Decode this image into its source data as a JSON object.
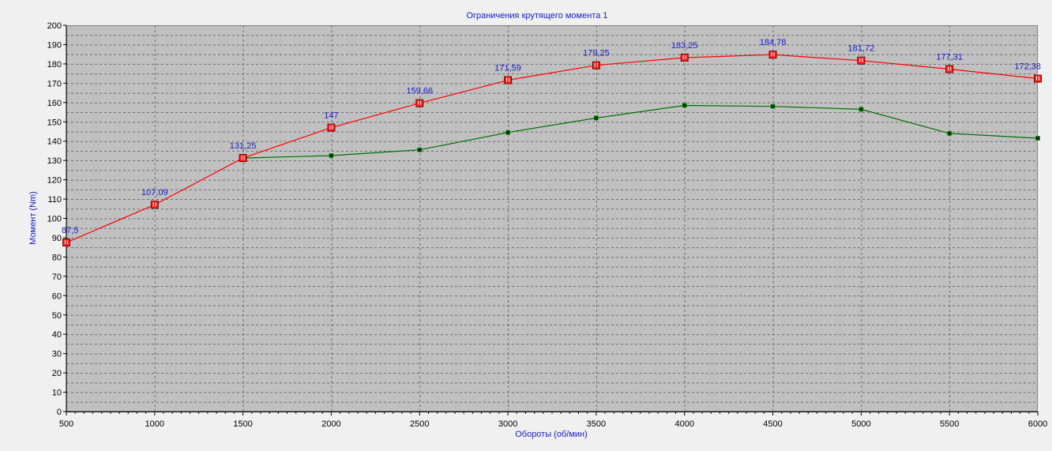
{
  "colors": {
    "page_background": "#f0f0f0",
    "plot_background": "#c0c0c0",
    "grid": "#6e6e6e",
    "text_accent": "#1a1acc",
    "series_red": "#ff0000",
    "series_green": "#007000"
  },
  "chart_data": {
    "type": "line",
    "title": "Ограничения крутящего момента 1",
    "xlabel": "Обороты (об/мин)",
    "ylabel": "Момент (Nm)",
    "xlim": [
      500,
      6000
    ],
    "ylim": [
      0,
      200
    ],
    "x_ticks": [
      500,
      1000,
      1500,
      2000,
      2500,
      3000,
      3500,
      4000,
      4500,
      5000,
      5500,
      6000
    ],
    "y_ticks": [
      0,
      10,
      20,
      30,
      40,
      50,
      60,
      70,
      80,
      90,
      100,
      110,
      120,
      130,
      140,
      150,
      160,
      170,
      180,
      190,
      200
    ],
    "grid": true,
    "legend": "none",
    "x": [
      500,
      1000,
      1500,
      2000,
      2500,
      3000,
      3500,
      4000,
      4500,
      5000,
      5500,
      6000
    ],
    "series": [
      {
        "values": [
          87.5,
          107.09,
          131.25,
          147,
          159.66,
          171.59,
          179.25,
          183.25,
          184.78,
          181.72,
          177.31,
          172.38
        ],
        "data_labels": [
          "87,5",
          "107,09",
          "131,25",
          "147",
          "159,66",
          "171,59",
          "179,25",
          "183,25",
          "184,78",
          "181,72",
          "177,31",
          "172,38"
        ],
        "color": "#ff0000",
        "marker": "red-square-handle"
      },
      {
        "x": [
          1500,
          2000,
          2500,
          3000,
          3500,
          4000,
          4500,
          5000,
          5500,
          6000
        ],
        "values": [
          131.25,
          132.5,
          135.5,
          144.5,
          152,
          158.5,
          158,
          156.5,
          144,
          141.5
        ],
        "color": "#007000",
        "marker": "small-square"
      }
    ]
  }
}
